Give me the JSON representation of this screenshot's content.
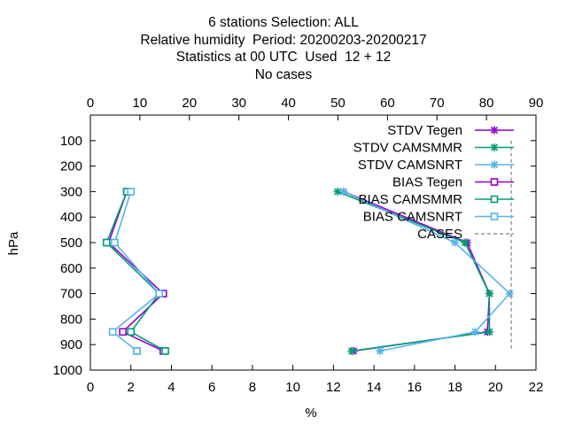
{
  "titles": {
    "line1": "6 stations Selection: ALL",
    "line2": "Relative humidity  Period: 20200203-20200217",
    "line3": "Statistics at 00 UTC  Used  12 + 12",
    "line4": "No cases"
  },
  "chart_data": {
    "type": "line",
    "title": "6 stations Selection: ALL / Relative humidity  Period: 20200203-20200217 / Statistics at 00 UTC  Used  12 + 12 / No cases",
    "xlabel": "%",
    "ylabel": "hPa",
    "xlim": [
      0,
      22
    ],
    "x2lim": [
      0,
      90
    ],
    "ylim": [
      1000,
      0
    ],
    "xticks": [
      0,
      2,
      4,
      6,
      8,
      10,
      12,
      14,
      16,
      18,
      20,
      22
    ],
    "x2ticks": [
      0,
      10,
      20,
      30,
      40,
      50,
      60,
      70,
      80,
      90
    ],
    "yticks": [
      100,
      200,
      300,
      400,
      500,
      600,
      700,
      800,
      900,
      1000
    ],
    "grid": false,
    "legend_position": "top-right",
    "series": [
      {
        "name": "STDV Tegen",
        "color": "#9400d3",
        "marker": "x",
        "levels": [
          300,
          500,
          700,
          850,
          925
        ],
        "values": [
          12.5,
          18.6,
          19.7,
          19.6,
          13.0
        ]
      },
      {
        "name": "STDV CAMSMMR",
        "color": "#009e73",
        "marker": "x",
        "levels": [
          300,
          500,
          700,
          850,
          925
        ],
        "values": [
          12.2,
          18.5,
          19.7,
          19.7,
          12.9
        ]
      },
      {
        "name": "STDV CAMSNRT",
        "color": "#56b4e9",
        "marker": "x",
        "levels": [
          300,
          500,
          700,
          850,
          925
        ],
        "values": [
          12.5,
          18.0,
          20.7,
          19.0,
          14.3
        ]
      },
      {
        "name": "BIAS Tegen",
        "color": "#9400d3",
        "marker": "square",
        "levels": [
          300,
          500,
          700,
          850,
          925
        ],
        "values": [
          1.8,
          0.9,
          3.6,
          1.6,
          3.6
        ]
      },
      {
        "name": "BIAS CAMSMMR",
        "color": "#009e73",
        "marker": "square",
        "levels": [
          300,
          500,
          700,
          850,
          925
        ],
        "values": [
          1.8,
          0.8,
          3.4,
          2.0,
          3.7
        ]
      },
      {
        "name": "BIAS CAMSNRT",
        "color": "#56b4e9",
        "marker": "square",
        "levels": [
          300,
          500,
          700,
          850,
          925,
          925
        ],
        "values": [
          2.0,
          1.2,
          3.4,
          1.1,
          2.3,
          2.3
        ]
      },
      {
        "name": "CASES",
        "color": "#808080",
        "marker": "none",
        "dashed": true,
        "axis": "x2",
        "levels": [
          100,
          925
        ],
        "values": [
          85,
          85
        ]
      }
    ]
  }
}
